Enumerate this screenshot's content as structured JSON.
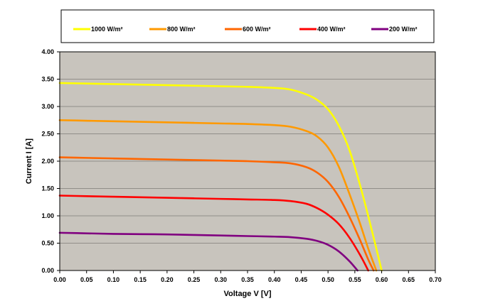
{
  "chart_data": {
    "type": "line",
    "title": "",
    "xlabel": "Voltage V [V]",
    "ylabel": "Current I [A]",
    "xlim": [
      0,
      0.7
    ],
    "ylim": [
      0,
      4
    ],
    "x_ticks": [
      "0.00",
      "0.05",
      "0.10",
      "0.15",
      "0.20",
      "0.25",
      "0.30",
      "0.35",
      "0.40",
      "0.45",
      "0.50",
      "0.55",
      "0.60",
      "0.65",
      "0.70"
    ],
    "y_ticks": [
      "0.00",
      "0.50",
      "1.00",
      "1.50",
      "2.00",
      "2.50",
      "3.00",
      "3.50",
      "4.00"
    ],
    "grid": "horizontal",
    "legend_position": "top",
    "background_color": "#c8c4bd",
    "series": [
      {
        "name": "1000 W/m²",
        "color": "#ffff00",
        "x": [
          0,
          0.05,
          0.1,
          0.15,
          0.2,
          0.25,
          0.3,
          0.35,
          0.4,
          0.43,
          0.46,
          0.48,
          0.5,
          0.52,
          0.54,
          0.56,
          0.58,
          0.6
        ],
        "y": [
          3.43,
          3.42,
          3.41,
          3.4,
          3.39,
          3.38,
          3.37,
          3.36,
          3.34,
          3.31,
          3.22,
          3.12,
          2.95,
          2.65,
          2.2,
          1.55,
          0.8,
          0.0
        ]
      },
      {
        "name": "800 W/m²",
        "color": "#ff9900",
        "x": [
          0,
          0.05,
          0.1,
          0.15,
          0.2,
          0.25,
          0.3,
          0.35,
          0.4,
          0.43,
          0.46,
          0.48,
          0.5,
          0.52,
          0.54,
          0.56,
          0.575,
          0.59
        ],
        "y": [
          2.75,
          2.74,
          2.73,
          2.72,
          2.71,
          2.7,
          2.69,
          2.68,
          2.66,
          2.63,
          2.55,
          2.45,
          2.25,
          1.9,
          1.4,
          0.85,
          0.4,
          0.0
        ]
      },
      {
        "name": "600 W/m²",
        "color": "#ff6600",
        "x": [
          0,
          0.05,
          0.1,
          0.15,
          0.2,
          0.25,
          0.3,
          0.35,
          0.4,
          0.43,
          0.46,
          0.48,
          0.5,
          0.52,
          0.54,
          0.56,
          0.575,
          0.585
        ],
        "y": [
          2.07,
          2.06,
          2.05,
          2.04,
          2.03,
          2.02,
          2.01,
          2.0,
          1.98,
          1.96,
          1.89,
          1.79,
          1.62,
          1.35,
          0.98,
          0.55,
          0.2,
          0.0
        ]
      },
      {
        "name": "400 W/m²",
        "color": "#ff0000",
        "x": [
          0,
          0.05,
          0.1,
          0.15,
          0.2,
          0.25,
          0.3,
          0.35,
          0.4,
          0.43,
          0.46,
          0.48,
          0.5,
          0.52,
          0.54,
          0.56,
          0.575
        ],
        "y": [
          1.37,
          1.36,
          1.35,
          1.34,
          1.33,
          1.32,
          1.31,
          1.3,
          1.29,
          1.27,
          1.22,
          1.14,
          1.02,
          0.85,
          0.6,
          0.28,
          0.0
        ]
      },
      {
        "name": "200 W/m²",
        "color": "#800080",
        "x": [
          0,
          0.05,
          0.1,
          0.15,
          0.2,
          0.25,
          0.3,
          0.35,
          0.4,
          0.43,
          0.46,
          0.48,
          0.5,
          0.52,
          0.54,
          0.555
        ],
        "y": [
          0.69,
          0.68,
          0.67,
          0.665,
          0.66,
          0.65,
          0.64,
          0.63,
          0.62,
          0.61,
          0.58,
          0.54,
          0.47,
          0.35,
          0.17,
          0.0
        ]
      }
    ]
  }
}
